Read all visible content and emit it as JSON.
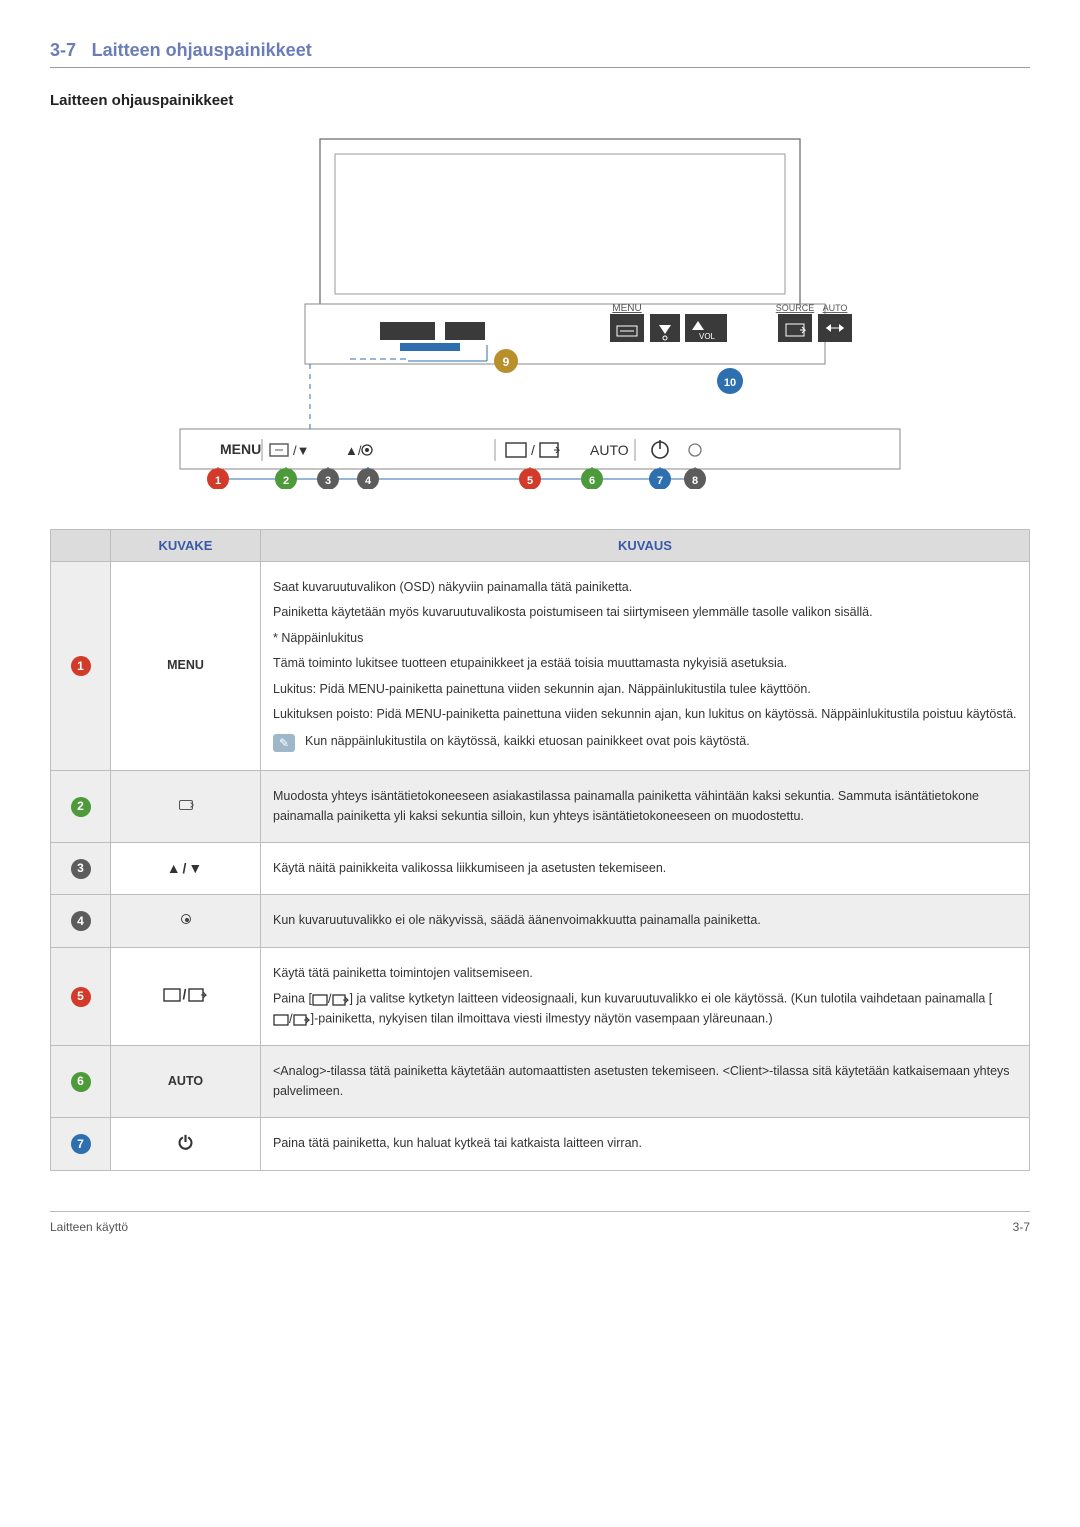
{
  "section": {
    "number": "3-7",
    "title": "Laitteen ohjauspainikkeet"
  },
  "subheading": "Laitteen ohjauspainikkeet",
  "diagram": {
    "remote_labels": {
      "menu": "MENU",
      "vol": "VOL",
      "source": "SOURCE",
      "auto": "AUTO"
    },
    "panel_labels": {
      "menu": "MENU",
      "auto": "AUTO"
    },
    "callouts": {
      "c1": "1",
      "c2": "2",
      "c3": "3",
      "c4": "4",
      "c5": "5",
      "c6": "6",
      "c7": "7",
      "c8": "8",
      "c9": "9",
      "c10": "10"
    },
    "callout_colors": {
      "c1": "#d23a2a",
      "c2": "#4d9a3a",
      "c3": "#5c5c5c",
      "c4": "#5c5c5c",
      "c5": "#d23a2a",
      "c6": "#4d9a3a",
      "c7": "#2e6fb0",
      "c8": "#5c5c5c",
      "c9": "#b8902b",
      "c10": "#2e6fb0"
    }
  },
  "table": {
    "headers": {
      "icon": "KUVAKE",
      "desc": "KUVAUS"
    },
    "rows": [
      {
        "num": "1",
        "num_color": "#d23a2a",
        "icon_text": "MENU",
        "paragraphs": [
          "Saat kuvaruutuvalikon (OSD) näkyviin painamalla tätä painiketta.",
          "Painiketta käytetään myös kuvaruutuvalikosta poistumiseen tai siirtymiseen ylemmälle tasolle valikon sisällä.",
          "* Näppäinlukitus",
          "Tämä toiminto lukitsee tuotteen etupainikkeet ja estää toisia muuttamasta nykyisiä asetuksia.",
          "Lukitus: Pidä MENU-painiketta painettuna viiden sekunnin ajan. Näppäinlukitustila tulee käyttöön.",
          "Lukituksen poisto: Pidä MENU-painiketta painettuna viiden sekunnin ajan, kun lukitus on käytössä. Näppäinlukitustila poistuu käytöstä."
        ],
        "note": "Kun näppäinlukitustila on käytössä, kaikki etuosan painikkeet ovat pois käytöstä."
      },
      {
        "num": "2",
        "num_color": "#4d9a3a",
        "icon_kind": "pcoin",
        "paragraphs": [
          "Muodosta yhteys isäntätietokoneeseen asiakastilassa painamalla painiketta vähintään kaksi sekuntia. Sammuta isäntätietokone painamalla painiketta yli kaksi sekuntia silloin, kun yhteys isäntätietokoneeseen on muodostettu."
        ]
      },
      {
        "num": "3",
        "num_color": "#5c5c5c",
        "icon_text": "▲/▼",
        "paragraphs": [
          "Käytä näitä painikkeita valikossa liikkumiseen ja asetusten tekemiseen."
        ]
      },
      {
        "num": "4",
        "num_color": "#5c5c5c",
        "icon_kind": "dot",
        "paragraphs": [
          "Kun kuvaruutuvalikko ei ole näkyvissä, säädä äänenvoimakkuutta painamalla painiketta."
        ]
      },
      {
        "num": "5",
        "num_color": "#d23a2a",
        "icon_kind": "src",
        "paragraphs": [
          "Käytä tätä painiketta toimintojen valitsemiseen."
        ],
        "rich_paragraph": {
          "pre": "Paina [",
          "mid": "] ja valitse kytketyn laitteen videosignaali, kun kuvaruutuvalikko ei ole käytössä. (Kun tulotila vaihdetaan painamalla [",
          "post": "]-painiketta, nykyisen tilan ilmoittava viesti ilmestyy näytön vasempaan yläreunaan.)"
        }
      },
      {
        "num": "6",
        "num_color": "#4d9a3a",
        "icon_text": "AUTO",
        "paragraphs": [
          "<Analog>-tilassa tätä painiketta käytetään automaattisten asetusten tekemiseen. <Client>-tilassa sitä käytetään katkaisemaan yhteys palvelimeen."
        ]
      },
      {
        "num": "7",
        "num_color": "#2e6fb0",
        "icon_text": "⏻",
        "paragraphs": [
          "Paina tätä painiketta, kun haluat kytkeä tai katkaista laitteen virran."
        ]
      }
    ]
  },
  "footer": {
    "left": "Laitteen käyttö",
    "right": "3-7"
  }
}
